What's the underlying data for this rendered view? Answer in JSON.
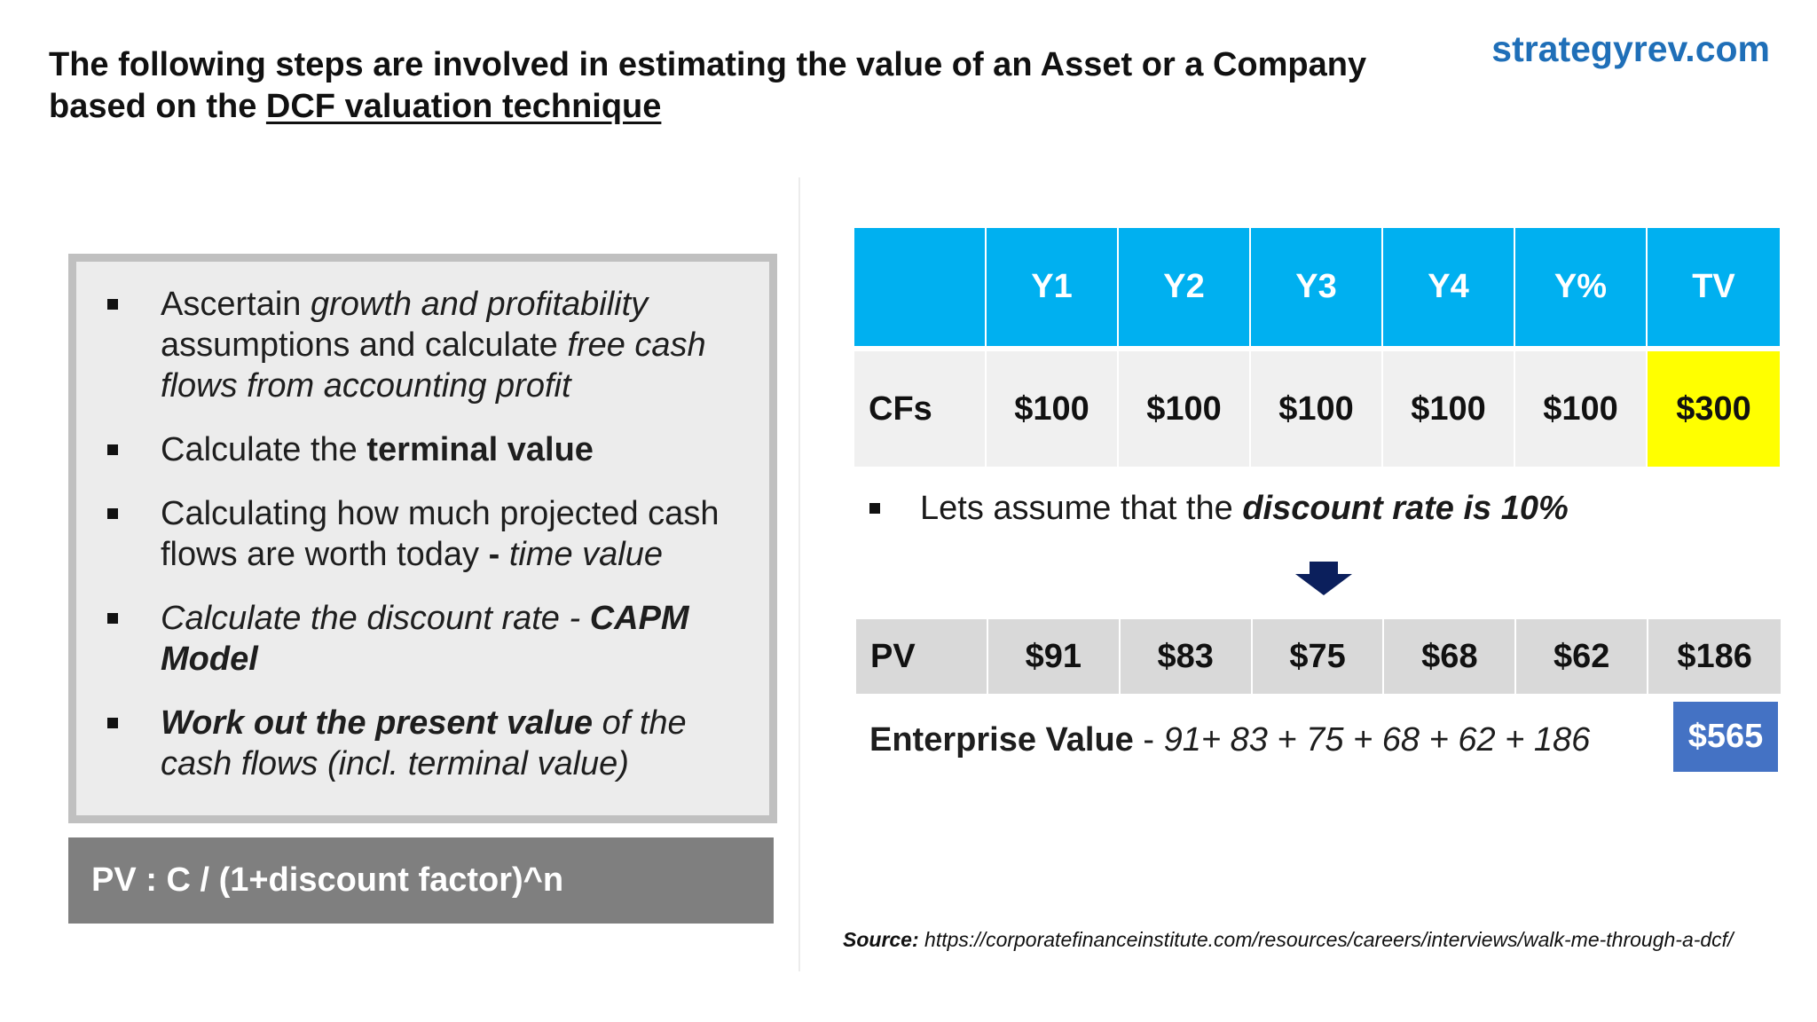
{
  "header": {
    "title_line1": "The following steps are involved in estimating the value of an Asset or a Company",
    "title_line2_prefix": "based on the ",
    "title_link": "DCF valuation technique",
    "brand": "strategyrev.com"
  },
  "steps": [
    {
      "parts": [
        {
          "text": "Ascertain ",
          "style": "normal"
        },
        {
          "text": "growth and profitability",
          "style": "italic"
        },
        {
          "text": " assumptions and calculate ",
          "style": "normal"
        },
        {
          "text": "free cash flows from accounting profit",
          "style": "italic"
        }
      ]
    },
    {
      "parts": [
        {
          "text": "Calculate the ",
          "style": "normal"
        },
        {
          "text": "terminal value",
          "style": "bold"
        }
      ]
    },
    {
      "parts": [
        {
          "text": "Calculating how much projected cash flows are worth today ",
          "style": "normal"
        },
        {
          "text": "- ",
          "style": "bold"
        },
        {
          "text": "time value",
          "style": "italic"
        }
      ]
    },
    {
      "parts": [
        {
          "text": "Calculate the discount rate - ",
          "style": "italic"
        },
        {
          "text": "CAPM Model",
          "style": "bold-italic"
        }
      ]
    },
    {
      "parts": [
        {
          "text": "Work out the present value",
          "style": "bold-italic"
        },
        {
          "text": " of the cash flows (incl. terminal value)",
          "style": "italic"
        }
      ]
    }
  ],
  "formula": "PV : C / (1+discount factor)^n",
  "cash_flow_table": {
    "headers": [
      "",
      "Y1",
      "Y2",
      "Y3",
      "Y4",
      "Y%",
      "TV"
    ],
    "row_label": "CFs",
    "values": [
      "$100",
      "$100",
      "$100",
      "$100",
      "$100",
      "$300"
    ]
  },
  "assumption": {
    "prefix": "Lets assume that the ",
    "emphasis": "discount rate is 10%"
  },
  "pv_table": {
    "row_label": "PV",
    "values": [
      "$91",
      "$83",
      "$75",
      "$68",
      "$62",
      "$186"
    ]
  },
  "enterprise_value": {
    "label": "Enterprise Value",
    "separator": " - ",
    "formula": "91+ 83 + 75 + 68 + 62 + 186",
    "total": "$565"
  },
  "source": {
    "label": "Source:",
    "url": "https://corporatefinanceinstitute.com/resources/careers/interviews/walk-me-through-a-dcf/"
  },
  "colors": {
    "brand": "#1f6fb8",
    "header_blue": "#00b0f0",
    "tv_highlight": "#ffff00",
    "ev_total": "#4472c4",
    "formula_bg": "#7f7f7f",
    "arrow": "#0b1f5c"
  },
  "icons": {
    "down_arrow": "down-arrow-icon",
    "bullet": "square-bullet-icon"
  }
}
